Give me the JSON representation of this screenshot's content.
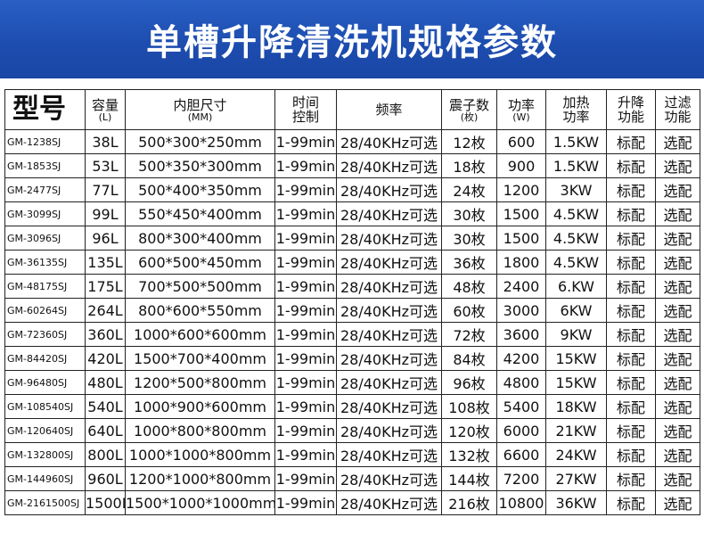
{
  "title": "单槽升降清洗机规格参数",
  "colors": {
    "banner": "#1c4cae",
    "banner_text": "#ffffff",
    "border": "#222222"
  },
  "headers": [
    {
      "main": "型号",
      "sub": ""
    },
    {
      "main": "容量",
      "sub": "(L)"
    },
    {
      "main": "内胆尺寸",
      "sub": "(MM)"
    },
    {
      "main": "时间\n控制",
      "sub": ""
    },
    {
      "main": "频率",
      "sub": ""
    },
    {
      "main": "震子数",
      "sub": "(枚)"
    },
    {
      "main": "功率",
      "sub": "(W)"
    },
    {
      "main": "加热\n功率",
      "sub": ""
    },
    {
      "main": "升降\n功能",
      "sub": ""
    },
    {
      "main": "过滤\n功能",
      "sub": ""
    }
  ],
  "rows": [
    [
      "GM-1238SJ",
      "38L",
      "500*300*250mm",
      "1-99min",
      "28/40KHz可选",
      "12枚",
      "600",
      "1.5KW",
      "标配",
      "选配"
    ],
    [
      "GM-1853SJ",
      "53L",
      "500*350*300mm",
      "1-99min",
      "28/40KHz可选",
      "18枚",
      "900",
      "1.5KW",
      "标配",
      "选配"
    ],
    [
      "GM-2477SJ",
      "77L",
      "500*400*350mm",
      "1-99min",
      "28/40KHz可选",
      "24枚",
      "1200",
      "3KW",
      "标配",
      "选配"
    ],
    [
      "GM-3099SJ",
      "99L",
      "550*450*400mm",
      "1-99min",
      "28/40KHz可选",
      "30枚",
      "1500",
      "4.5KW",
      "标配",
      "选配"
    ],
    [
      "GM-3096SJ",
      "96L",
      "800*300*400mm",
      "1-99min",
      "28/40KHz可选",
      "30枚",
      "1500",
      "4.5KW",
      "标配",
      "选配"
    ],
    [
      "GM-36135SJ",
      "135L",
      "600*500*450mm",
      "1-99min",
      "28/40KHz可选",
      "36枚",
      "1800",
      "4.5KW",
      "标配",
      "选配"
    ],
    [
      "GM-48175SJ",
      "175L",
      "700*500*500mm",
      "1-99min",
      "28/40KHz可选",
      "48枚",
      "2400",
      "6.KW",
      "标配",
      "选配"
    ],
    [
      "GM-60264SJ",
      "264L",
      "800*600*550mm",
      "1-99min",
      "28/40KHz可选",
      "60枚",
      "3000",
      "6KW",
      "标配",
      "选配"
    ],
    [
      "GM-72360SJ",
      "360L",
      "1000*600*600mm",
      "1-99min",
      "28/40KHz可选",
      "72枚",
      "3600",
      "9KW",
      "标配",
      "选配"
    ],
    [
      "GM-84420SJ",
      "420L",
      "1500*700*400mm",
      "1-99min",
      "28/40KHz可选",
      "84枚",
      "4200",
      "15KW",
      "标配",
      "选配"
    ],
    [
      "GM-96480SJ",
      "480L",
      "1200*500*800mm",
      "1-99min",
      "28/40KHz可选",
      "96枚",
      "4800",
      "15KW",
      "标配",
      "选配"
    ],
    [
      "GM-108540SJ",
      "540L",
      "1000*900*600mm",
      "1-99min",
      "28/40KHz可选",
      "108枚",
      "5400",
      "18KW",
      "标配",
      "选配"
    ],
    [
      "GM-120640SJ",
      "640L",
      "1000*800*800mm",
      "1-99min",
      "28/40KHz可选",
      "120枚",
      "6000",
      "21KW",
      "标配",
      "选配"
    ],
    [
      "GM-132800SJ",
      "800L",
      "1000*1000*800mm",
      "1-99min",
      "28/40KHz可选",
      "132枚",
      "6600",
      "24KW",
      "标配",
      "选配"
    ],
    [
      "GM-144960SJ",
      "960L",
      "1200*1000*800mm",
      "1-99min",
      "28/40KHz可选",
      "144枚",
      "7200",
      "27KW",
      "标配",
      "选配"
    ],
    [
      "GM-2161500SJ",
      "1500L",
      "1500*1000*1000mm",
      "1-99min",
      "28/40KHz可选",
      "216枚",
      "10800",
      "36KW",
      "标配",
      "选配"
    ]
  ]
}
